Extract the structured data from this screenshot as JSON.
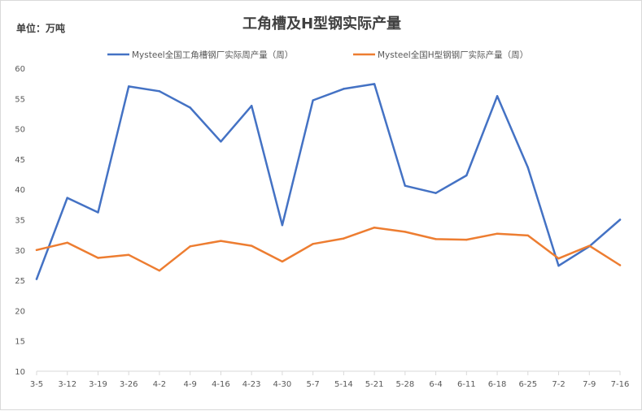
{
  "chart_data": {
    "type": "line",
    "title": "工角槽及H型钢实际产量",
    "unit_label": "单位：万吨",
    "categories": [
      "3-5",
      "3-12",
      "3-19",
      "3-26",
      "4-2",
      "4-9",
      "4-16",
      "4-23",
      "4-30",
      "5-7",
      "5-14",
      "5-21",
      "5-28",
      "6-4",
      "6-11",
      "6-18",
      "6-25",
      "7-2",
      "7-9",
      "7-16"
    ],
    "series": [
      {
        "name": "Mysteel全国工角槽钢厂实际周产量（周）",
        "color": "#4472c4",
        "values": [
          25.2,
          38.6,
          36.2,
          57.0,
          56.2,
          53.5,
          47.9,
          53.8,
          34.1,
          54.7,
          56.6,
          57.4,
          40.6,
          39.4,
          42.3,
          55.4,
          43.6,
          27.4,
          30.6,
          35.0
        ]
      },
      {
        "name": "Mysteel全国H型钢钢厂实际产量（周）",
        "color": "#ed7d31",
        "values": [
          30.0,
          31.2,
          28.7,
          29.2,
          26.6,
          30.6,
          31.5,
          30.7,
          28.1,
          31.0,
          31.9,
          33.7,
          33.0,
          31.8,
          31.7,
          32.7,
          32.4,
          28.6,
          30.7,
          27.5
        ]
      }
    ],
    "ylim": [
      10,
      60
    ],
    "yticks": [
      10,
      15,
      20,
      25,
      30,
      35,
      40,
      45,
      50,
      55,
      60
    ],
    "grid": false,
    "legend_position": "top"
  }
}
